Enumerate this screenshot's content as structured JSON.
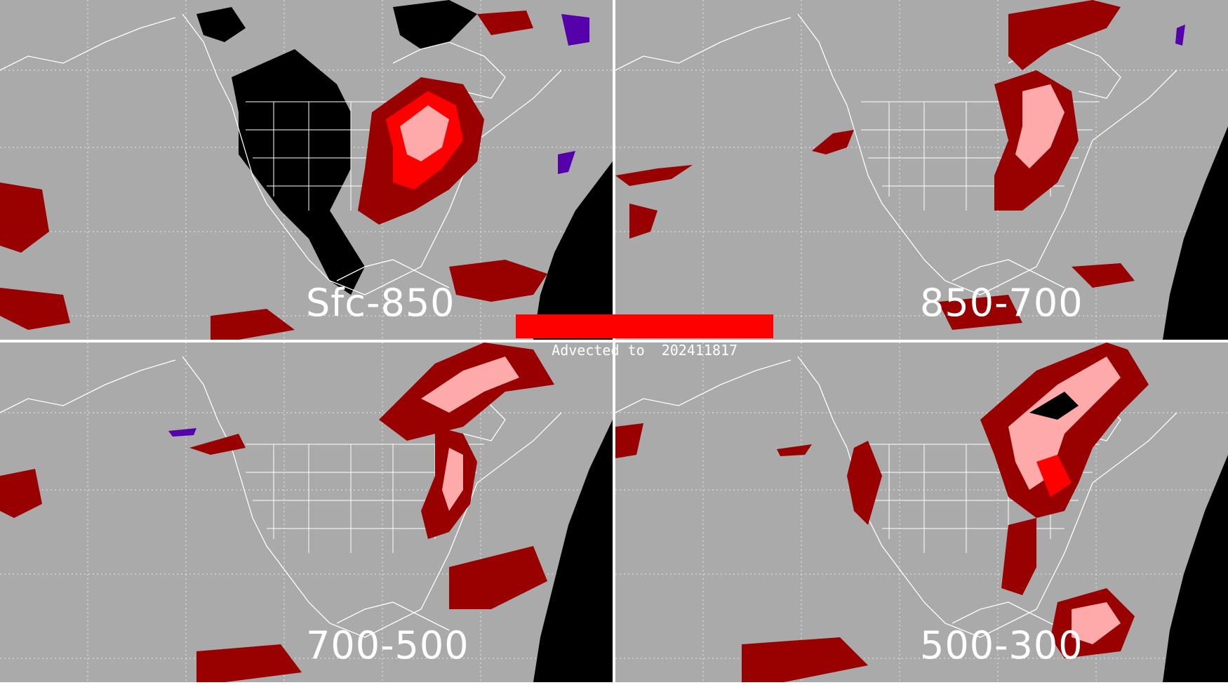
{
  "banner": {
    "text": "Advected to  202411817",
    "color": "#ff0000"
  },
  "panels": [
    {
      "id": "sfc-850",
      "label": "Sfc-850"
    },
    {
      "id": "850-700",
      "label": "850-700"
    },
    {
      "id": "700-500",
      "label": "700-500"
    },
    {
      "id": "500-300",
      "label": "500-300"
    }
  ],
  "colors": {
    "background": "#aaaaaa",
    "coastline": "#ffffff",
    "dark_red": "#990000",
    "red": "#ff0000",
    "pink": "#ffaaaa",
    "black": "#000000",
    "purple": "#5500aa",
    "divider": "#ffffff"
  }
}
